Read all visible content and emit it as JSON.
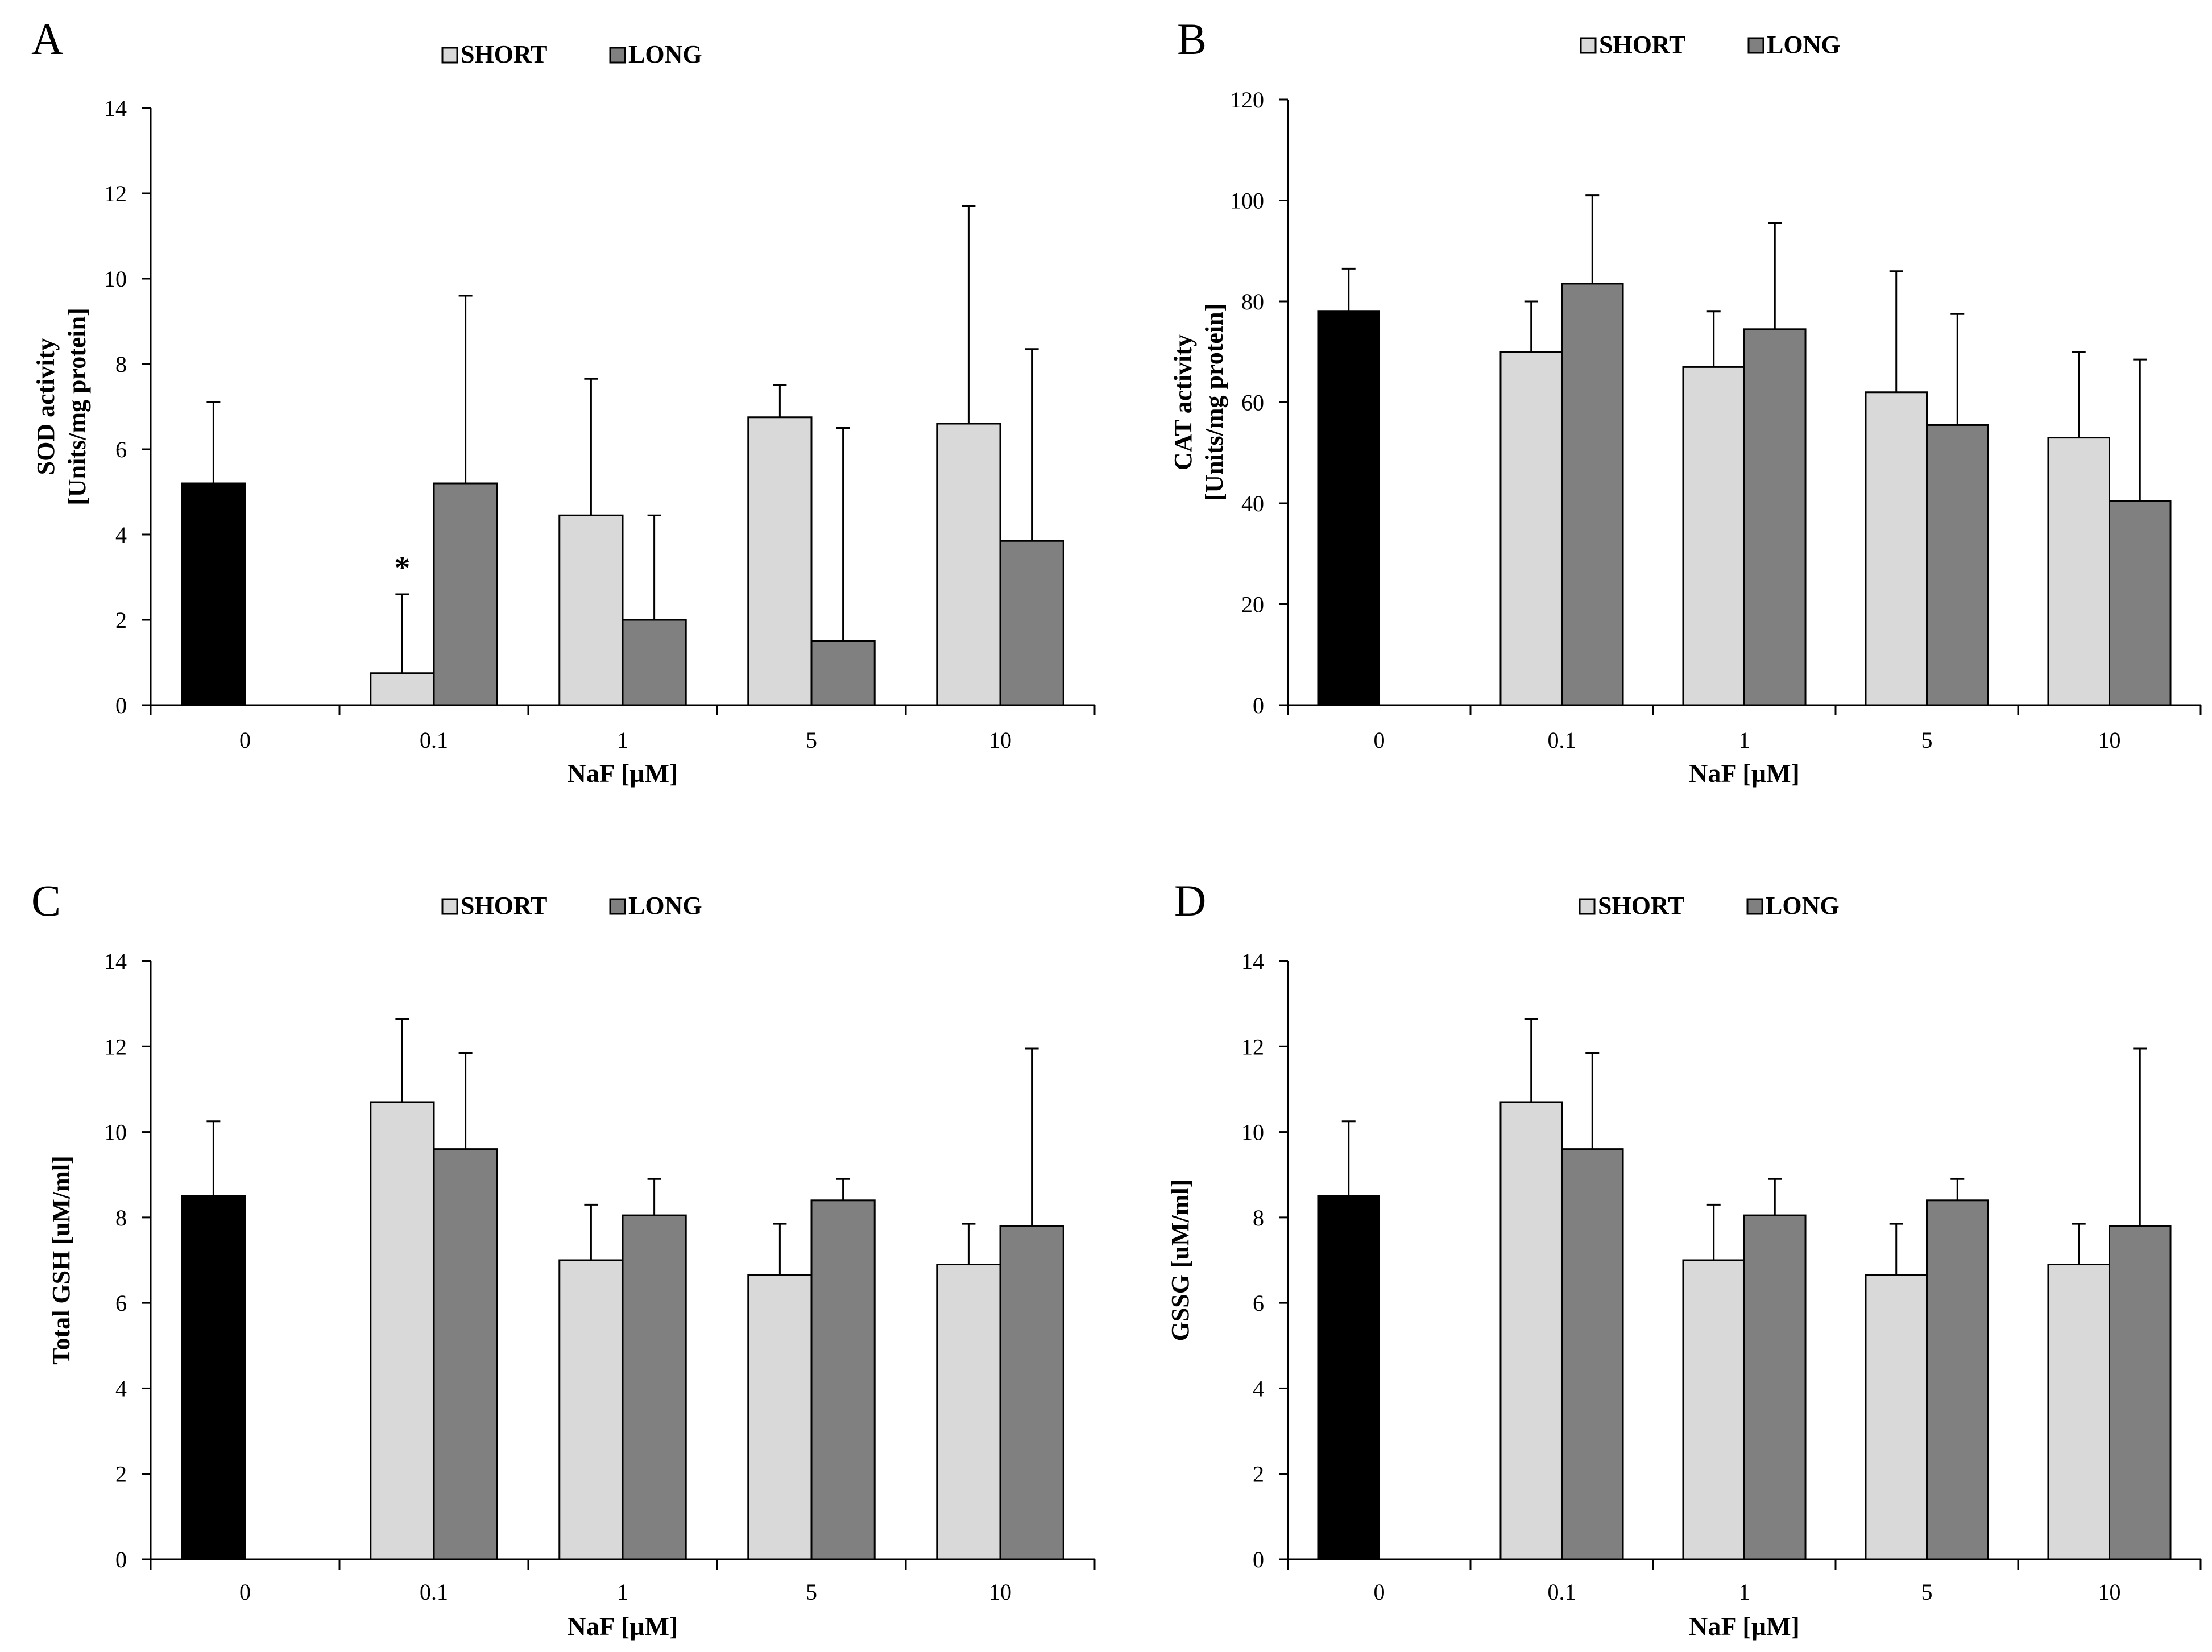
{
  "chart_data": [
    {
      "type": "bar",
      "panel_label": "A",
      "title": "",
      "legend": [
        "SHORT",
        "LONG"
      ],
      "xlabel": "NaF [µM]",
      "ylabel": [
        "SOD activity",
        "[Units/mg protein]"
      ],
      "ylim": [
        0,
        14
      ],
      "yticks": [
        0,
        2,
        4,
        6,
        8,
        10,
        12,
        14
      ],
      "categories": [
        "0",
        "0.1",
        "1",
        "5",
        "10"
      ],
      "control": {
        "value": 5.2,
        "error": 1.9
      },
      "series": [
        {
          "name": "SHORT",
          "values": [
            null,
            0.75,
            4.45,
            6.75,
            6.6
          ],
          "errors": [
            null,
            1.85,
            3.2,
            0.75,
            5.1
          ]
        },
        {
          "name": "LONG",
          "values": [
            null,
            5.2,
            2.0,
            1.5,
            3.85
          ],
          "errors": [
            null,
            4.4,
            2.45,
            5.0,
            4.5
          ]
        }
      ],
      "annotations": [
        {
          "text": "*",
          "category": "0.1",
          "series": "SHORT"
        }
      ]
    },
    {
      "type": "bar",
      "panel_label": "B",
      "title": "",
      "legend": [
        "SHORT",
        "LONG"
      ],
      "xlabel": "NaF [µM]",
      "ylabel": [
        "CAT activity",
        "[Units/mg protein]"
      ],
      "ylim": [
        0,
        120
      ],
      "yticks": [
        0,
        20,
        40,
        60,
        80,
        100,
        120
      ],
      "categories": [
        "0",
        "0.1",
        "1",
        "5",
        "10"
      ],
      "control": {
        "value": 78,
        "error": 8.5
      },
      "series": [
        {
          "name": "SHORT",
          "values": [
            null,
            70,
            67,
            62,
            53
          ],
          "errors": [
            null,
            10,
            11,
            24,
            17
          ]
        },
        {
          "name": "LONG",
          "values": [
            null,
            83.5,
            74.5,
            55.5,
            40.5
          ],
          "errors": [
            null,
            17.5,
            21,
            22,
            28
          ]
        }
      ],
      "annotations": []
    },
    {
      "type": "bar",
      "panel_label": "C",
      "title": "",
      "legend": [
        "SHORT",
        "LONG"
      ],
      "xlabel": "NaF [µM]",
      "ylabel": [
        "Total GSH [uM/ml]"
      ],
      "ylim": [
        0,
        14
      ],
      "yticks": [
        0,
        2,
        4,
        6,
        8,
        10,
        12,
        14
      ],
      "categories": [
        "0",
        "0.1",
        "1",
        "5",
        "10"
      ],
      "control": {
        "value": 8.5,
        "error": 1.75
      },
      "series": [
        {
          "name": "SHORT",
          "values": [
            null,
            10.7,
            7.0,
            6.65,
            6.9
          ],
          "errors": [
            null,
            1.95,
            1.3,
            1.2,
            0.95
          ]
        },
        {
          "name": "LONG",
          "values": [
            null,
            9.6,
            8.05,
            8.4,
            7.8
          ],
          "errors": [
            null,
            2.25,
            0.85,
            0.5,
            4.15
          ]
        }
      ],
      "annotations": []
    },
    {
      "type": "bar",
      "panel_label": "D",
      "title": "",
      "legend": [
        "SHORT",
        "LONG"
      ],
      "xlabel": "NaF [µM]",
      "ylabel": [
        "GSSG [uM/ml]"
      ],
      "ylim": [
        0,
        14
      ],
      "yticks": [
        0,
        2,
        4,
        6,
        8,
        10,
        12,
        14
      ],
      "categories": [
        "0",
        "0.1",
        "1",
        "5",
        "10"
      ],
      "control": {
        "value": 8.5,
        "error": 1.75
      },
      "series": [
        {
          "name": "SHORT",
          "values": [
            null,
            10.7,
            7.0,
            6.65,
            6.9
          ],
          "errors": [
            null,
            1.95,
            1.3,
            1.2,
            0.95
          ]
        },
        {
          "name": "LONG",
          "values": [
            null,
            9.6,
            8.05,
            8.4,
            7.8
          ],
          "errors": [
            null,
            2.25,
            0.85,
            0.5,
            4.15
          ]
        }
      ],
      "annotations": []
    }
  ],
  "colors": {
    "control": "#000000",
    "short": "#d9d9d9",
    "long": "#808080",
    "axis": "#000000"
  }
}
